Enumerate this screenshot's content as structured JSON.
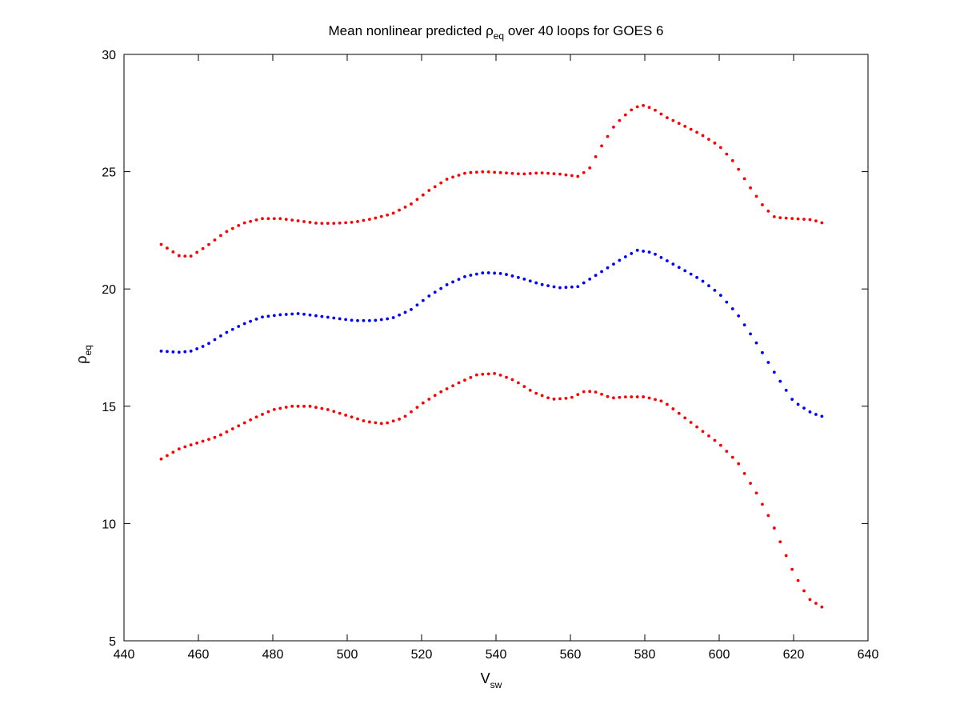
{
  "chart_data": {
    "type": "scatter",
    "title": {
      "main": "Mean nonlinear predicted ",
      "symbol": "ρ",
      "sub": "eq",
      "rest": " over 40 loops for GOES 6"
    },
    "xlabel": {
      "main": "V",
      "sub": "sw"
    },
    "ylabel": {
      "main": "ρ",
      "sub": "eq"
    },
    "xlim": [
      440,
      640
    ],
    "ylim": [
      5,
      30
    ],
    "xticks": [
      "440",
      "460",
      "480",
      "500",
      "520",
      "540",
      "560",
      "580",
      "600",
      "620",
      "640"
    ],
    "yticks": [
      "5",
      "10",
      "15",
      "20",
      "25",
      "30"
    ],
    "grid": false,
    "legend": "none",
    "series": [
      {
        "role": "upper",
        "color": "#ff0000",
        "points": [
          [
            450,
            21.9
          ],
          [
            455,
            21.4
          ],
          [
            458,
            21.4
          ],
          [
            462,
            21.8
          ],
          [
            467,
            22.4
          ],
          [
            472,
            22.8
          ],
          [
            477,
            23.0
          ],
          [
            482,
            23.0
          ],
          [
            487,
            22.9
          ],
          [
            492,
            22.8
          ],
          [
            497,
            22.8
          ],
          [
            502,
            22.85
          ],
          [
            507,
            23.0
          ],
          [
            512,
            23.2
          ],
          [
            517,
            23.6
          ],
          [
            522,
            24.2
          ],
          [
            527,
            24.7
          ],
          [
            532,
            24.95
          ],
          [
            537,
            25.0
          ],
          [
            542,
            24.95
          ],
          [
            547,
            24.9
          ],
          [
            552,
            24.95
          ],
          [
            557,
            24.9
          ],
          [
            562,
            24.8
          ],
          [
            565,
            25.1
          ],
          [
            568,
            26.0
          ],
          [
            572,
            27.0
          ],
          [
            576,
            27.6
          ],
          [
            579,
            27.85
          ],
          [
            582,
            27.7
          ],
          [
            586,
            27.3
          ],
          [
            590,
            27.0
          ],
          [
            595,
            26.6
          ],
          [
            600,
            26.1
          ],
          [
            604,
            25.4
          ],
          [
            608,
            24.4
          ],
          [
            612,
            23.5
          ],
          [
            615,
            23.05
          ],
          [
            620,
            23.0
          ],
          [
            625,
            22.95
          ],
          [
            628,
            22.8
          ]
        ]
      },
      {
        "role": "mean",
        "color": "#0000ff",
        "points": [
          [
            450,
            17.35
          ],
          [
            455,
            17.3
          ],
          [
            458,
            17.35
          ],
          [
            462,
            17.6
          ],
          [
            467,
            18.1
          ],
          [
            472,
            18.5
          ],
          [
            477,
            18.8
          ],
          [
            482,
            18.9
          ],
          [
            487,
            18.95
          ],
          [
            492,
            18.85
          ],
          [
            497,
            18.75
          ],
          [
            502,
            18.65
          ],
          [
            507,
            18.65
          ],
          [
            512,
            18.75
          ],
          [
            517,
            19.1
          ],
          [
            522,
            19.7
          ],
          [
            527,
            20.2
          ],
          [
            532,
            20.55
          ],
          [
            537,
            20.7
          ],
          [
            542,
            20.65
          ],
          [
            547,
            20.45
          ],
          [
            552,
            20.2
          ],
          [
            557,
            20.05
          ],
          [
            562,
            20.1
          ],
          [
            566,
            20.5
          ],
          [
            570,
            20.9
          ],
          [
            574,
            21.3
          ],
          [
            578,
            21.65
          ],
          [
            582,
            21.55
          ],
          [
            586,
            21.2
          ],
          [
            590,
            20.85
          ],
          [
            595,
            20.4
          ],
          [
            600,
            19.8
          ],
          [
            605,
            18.9
          ],
          [
            610,
            17.7
          ],
          [
            615,
            16.4
          ],
          [
            620,
            15.2
          ],
          [
            625,
            14.7
          ],
          [
            628,
            14.55
          ]
        ]
      },
      {
        "role": "lower",
        "color": "#ff0000",
        "points": [
          [
            450,
            12.75
          ],
          [
            455,
            13.2
          ],
          [
            460,
            13.45
          ],
          [
            465,
            13.7
          ],
          [
            470,
            14.1
          ],
          [
            475,
            14.5
          ],
          [
            480,
            14.85
          ],
          [
            485,
            15.0
          ],
          [
            490,
            15.0
          ],
          [
            495,
            14.85
          ],
          [
            500,
            14.6
          ],
          [
            505,
            14.35
          ],
          [
            510,
            14.25
          ],
          [
            515,
            14.5
          ],
          [
            520,
            15.1
          ],
          [
            525,
            15.6
          ],
          [
            530,
            16.0
          ],
          [
            535,
            16.35
          ],
          [
            540,
            16.4
          ],
          [
            545,
            16.1
          ],
          [
            550,
            15.6
          ],
          [
            555,
            15.3
          ],
          [
            560,
            15.35
          ],
          [
            564,
            15.65
          ],
          [
            567,
            15.6
          ],
          [
            571,
            15.35
          ],
          [
            575,
            15.4
          ],
          [
            580,
            15.4
          ],
          [
            585,
            15.2
          ],
          [
            590,
            14.6
          ],
          [
            595,
            14.0
          ],
          [
            600,
            13.4
          ],
          [
            605,
            12.6
          ],
          [
            610,
            11.3
          ],
          [
            614,
            10.1
          ],
          [
            617,
            9.0
          ],
          [
            620,
            7.9
          ],
          [
            624,
            6.8
          ],
          [
            628,
            6.4
          ]
        ]
      }
    ]
  }
}
